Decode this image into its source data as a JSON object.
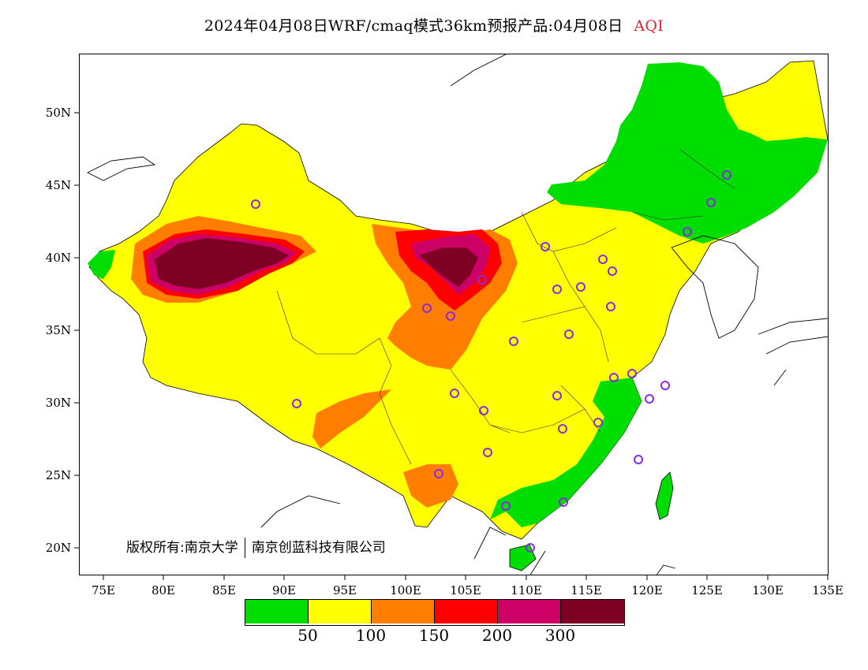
{
  "title": {
    "text": "2024年04月08日WRF/cmaq模式36km预报产品:04月08日",
    "variable": "AQI"
  },
  "axes": {
    "lat_labels": [
      "50N",
      "45N",
      "40N",
      "35N",
      "30N",
      "25N",
      "20N"
    ],
    "lon_labels": [
      "75E",
      "80E",
      "85E",
      "90E",
      "95E",
      "100E",
      "105E",
      "110E",
      "115E",
      "120E",
      "125E",
      "130E",
      "135E"
    ]
  },
  "copyright": {
    "left": "版权所有:南京大学",
    "right": "南京创蓝科技有限公司"
  },
  "legend": {
    "colors": [
      "#00dd00",
      "#ffff00",
      "#ff7e00",
      "#ff0000",
      "#cc0066",
      "#7e0023"
    ],
    "labels": [
      "50",
      "100",
      "150",
      "200",
      "300"
    ]
  },
  "colors": {
    "good": "#00dd00",
    "moderate": "#ffff00",
    "usg": "#ff7e00",
    "unhealthy": "#ff0000",
    "very_unhealthy": "#cc0066",
    "hazardous": "#7e0023",
    "station_marker": "#8a2be2"
  }
}
